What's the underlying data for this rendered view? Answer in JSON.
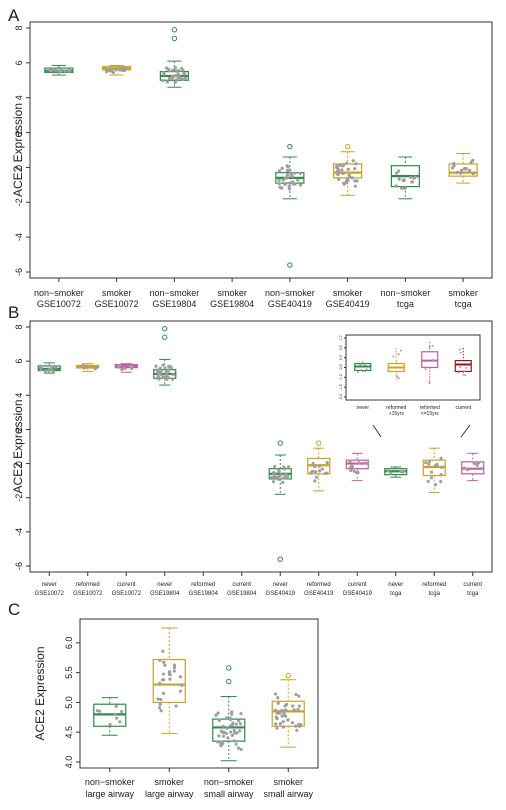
{
  "panels": {
    "A": {
      "letter": "A"
    },
    "B": {
      "letter": "B"
    },
    "C": {
      "letter": "C"
    }
  },
  "colors": {
    "green": "#2e8b4a",
    "gold": "#c9a227",
    "pink": "#c25aa8",
    "darkred": "#8b1a1a",
    "points": "#9e9e9e"
  },
  "chart_data": [
    {
      "type": "box",
      "panel": "A",
      "ylabel": "ACE2 Expression",
      "ylim": [
        -6,
        8
      ],
      "yticks": [
        -6,
        -4,
        -2,
        0,
        2,
        4,
        6,
        8
      ],
      "categories": [
        [
          "non−smoker",
          "GSE10072"
        ],
        [
          "smoker",
          "GSE10072"
        ],
        [
          "non−smoker",
          "GSE19804"
        ],
        [
          "smoker",
          "GSE19804"
        ],
        [
          "non−smoker",
          "GSE40419"
        ],
        [
          "smoker",
          "GSE40419"
        ],
        [
          "non−smoker",
          "tcga"
        ],
        [
          "smoker",
          "tcga"
        ]
      ],
      "boxes": [
        {
          "q1": 5.45,
          "med": 5.55,
          "q3": 5.7,
          "lo": 5.3,
          "hi": 5.85,
          "color": "green",
          "n": 14,
          "outliers": []
        },
        {
          "q1": 5.6,
          "med": 5.68,
          "q3": 5.78,
          "lo": 5.3,
          "hi": 5.85,
          "color": "gold",
          "n": 14,
          "outliers": []
        },
        {
          "q1": 5.0,
          "med": 5.25,
          "q3": 5.5,
          "lo": 4.6,
          "hi": 6.1,
          "color": "green",
          "n": 32,
          "outliers": [
            7.4,
            7.9
          ]
        },
        null,
        {
          "q1": -0.9,
          "med": -0.6,
          "q3": -0.3,
          "lo": -1.8,
          "hi": 0.6,
          "color": "green",
          "n": 30,
          "outliers": [
            1.2,
            -5.6
          ]
        },
        {
          "q1": -0.6,
          "med": -0.3,
          "q3": 0.2,
          "lo": -1.6,
          "hi": 0.9,
          "color": "gold",
          "n": 30,
          "outliers": [
            1.2
          ]
        },
        {
          "q1": -1.1,
          "med": -0.5,
          "q3": 0.1,
          "lo": -1.8,
          "hi": 0.6,
          "color": "green",
          "n": 16,
          "outliers": []
        },
        {
          "q1": -0.5,
          "med": -0.3,
          "q3": 0.2,
          "lo": -0.9,
          "hi": 0.8,
          "color": "gold",
          "n": 16,
          "outliers": []
        }
      ]
    },
    {
      "type": "box",
      "panel": "B",
      "ylabel": "ACE2 Expression",
      "ylim": [
        -6,
        8
      ],
      "yticks": [
        -6,
        -4,
        -2,
        0,
        2,
        4,
        6,
        8
      ],
      "categories": [
        [
          "never",
          "GSE10072"
        ],
        [
          "reformed",
          "GSE10072"
        ],
        [
          "current",
          "GSE10072"
        ],
        [
          "never",
          "GSE19804"
        ],
        [
          "reformed",
          "GSE19804"
        ],
        [
          "current",
          "GSE19804"
        ],
        [
          "never",
          "GSE40419"
        ],
        [
          "reformed",
          "GSE40419"
        ],
        [
          "current",
          "GSE40419"
        ],
        [
          "never",
          "tcga"
        ],
        [
          "reformed",
          "tcga"
        ],
        [
          "current",
          "tcga"
        ]
      ],
      "boxes": [
        {
          "q1": 5.45,
          "med": 5.55,
          "q3": 5.72,
          "lo": 5.3,
          "hi": 5.9,
          "color": "green",
          "n": 12,
          "outliers": []
        },
        {
          "q1": 5.6,
          "med": 5.65,
          "q3": 5.75,
          "lo": 5.4,
          "hi": 5.85,
          "color": "gold",
          "n": 6,
          "outliers": []
        },
        {
          "q1": 5.62,
          "med": 5.7,
          "q3": 5.8,
          "lo": 5.35,
          "hi": 5.85,
          "color": "pink",
          "n": 8,
          "outliers": []
        },
        {
          "q1": 5.0,
          "med": 5.25,
          "q3": 5.5,
          "lo": 4.6,
          "hi": 6.1,
          "color": "green",
          "n": 32,
          "outliers": [
            7.4,
            7.9
          ]
        },
        null,
        null,
        {
          "q1": -0.9,
          "med": -0.6,
          "q3": -0.3,
          "lo": -1.8,
          "hi": 0.5,
          "color": "green",
          "n": 28,
          "outliers": [
            1.2,
            -5.6
          ]
        },
        {
          "q1": -0.6,
          "med": -0.1,
          "q3": 0.3,
          "lo": -1.6,
          "hi": 0.9,
          "color": "gold",
          "n": 14,
          "outliers": [
            1.2
          ]
        },
        {
          "q1": -0.3,
          "med": 0.0,
          "q3": 0.2,
          "lo": -1.0,
          "hi": 0.6,
          "color": "pink",
          "n": 12,
          "outliers": []
        },
        {
          "q1": -0.65,
          "med": -0.45,
          "q3": -0.3,
          "lo": -0.8,
          "hi": -0.2,
          "color": "green",
          "n": 5,
          "outliers": []
        },
        {
          "q1": -0.7,
          "med": -0.2,
          "q3": 0.2,
          "lo": -1.7,
          "hi": 0.9,
          "color": "gold",
          "n": 14,
          "outliers": []
        },
        {
          "q1": -0.6,
          "med": -0.3,
          "q3": 0.1,
          "lo": -1.0,
          "hi": 0.6,
          "color": "pink",
          "n": 7,
          "outliers": []
        }
      ],
      "inset": {
        "ylim": [
          -2.0,
          1.0
        ],
        "yticks": [
          -2.0,
          -1.5,
          -1.0,
          -0.5,
          0.0,
          0.5,
          1.0
        ],
        "ytick_labels": [
          "-2.0",
          "-1.5",
          "-1.0",
          "-0.5",
          "0.0",
          "0.5",
          "1.0"
        ],
        "categories": [
          [
            "never",
            ""
          ],
          [
            "reformed",
            ">15yrs"
          ],
          [
            "reformed",
            "<=15yrs"
          ],
          [
            "current",
            ""
          ]
        ],
        "boxes": [
          {
            "q1": -0.65,
            "med": -0.45,
            "q3": -0.3,
            "lo": -0.8,
            "hi": -0.2,
            "color": "green",
            "n": 5
          },
          {
            "q1": -0.7,
            "med": -0.5,
            "q3": -0.3,
            "lo": -1.2,
            "hi": 0.5,
            "color": "gold",
            "n": 6
          },
          {
            "q1": -0.5,
            "med": -0.15,
            "q3": 0.3,
            "lo": -1.4,
            "hi": 0.8,
            "color": "pink",
            "n": 6
          },
          {
            "q1": -0.7,
            "med": -0.35,
            "q3": -0.15,
            "lo": -0.9,
            "hi": 0.5,
            "color": "darkred",
            "n": 7
          }
        ]
      }
    },
    {
      "type": "box",
      "panel": "C",
      "ylabel": "ACE2 Expression",
      "ylim": [
        4.0,
        6.3
      ],
      "yticks": [
        4.0,
        4.5,
        5.0,
        5.5,
        6.0
      ],
      "ytick_labels": [
        "4.0",
        "4.5",
        "5.0",
        "5.5",
        "6.0"
      ],
      "categories": [
        [
          "non−smoker",
          "large airway"
        ],
        [
          "smoker",
          "large airway"
        ],
        [
          "non−smoker",
          "small airway"
        ],
        [
          "smoker",
          "small airway"
        ]
      ],
      "boxes": [
        {
          "q1": 4.6,
          "med": 4.8,
          "q3": 4.97,
          "lo": 4.45,
          "hi": 5.08,
          "color": "green",
          "n": 8,
          "outliers": []
        },
        {
          "q1": 5.0,
          "med": 5.3,
          "q3": 5.72,
          "lo": 4.48,
          "hi": 6.25,
          "color": "gold",
          "n": 26,
          "outliers": []
        },
        {
          "q1": 4.35,
          "med": 4.58,
          "q3": 4.72,
          "lo": 4.02,
          "hi": 5.1,
          "color": "green",
          "n": 40,
          "outliers": [
            5.35,
            5.58
          ]
        },
        {
          "q1": 4.6,
          "med": 4.85,
          "q3": 5.02,
          "lo": 4.25,
          "hi": 5.38,
          "color": "gold",
          "n": 36,
          "outliers": [
            5.45
          ]
        }
      ]
    }
  ]
}
